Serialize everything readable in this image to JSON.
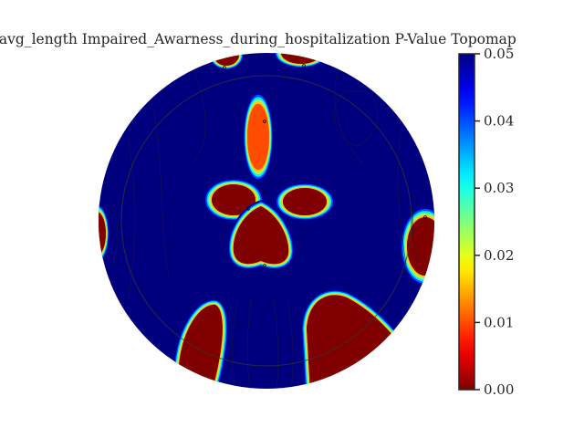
{
  "chart_data": {
    "type": "heatmap",
    "subtype": "scalp-topomap",
    "title": "e_avg_length Impaired_Awarness_during_hospitalization P-Value Topomap",
    "colormap": "jet_r",
    "colorbar": {
      "vmin": 0.0,
      "vmax": 0.05,
      "ticks": [
        0.0,
        0.01,
        0.02,
        0.03,
        0.04,
        0.05
      ],
      "tick_labels": [
        "0.00",
        "0.01",
        "0.02",
        "0.03",
        "0.04",
        "0.05"
      ],
      "placement": "right"
    },
    "background_value": 0.05,
    "significant_regions": [
      {
        "name": "frontal-midline",
        "min_p": 0.01
      },
      {
        "name": "central-left",
        "min_p": 0.0
      },
      {
        "name": "central-right",
        "min_p": 0.0
      },
      {
        "name": "central-midline",
        "min_p": 0.0
      },
      {
        "name": "left-temporal",
        "min_p": 0.0
      },
      {
        "name": "right-temporal",
        "min_p": 0.0
      },
      {
        "name": "occipital-left",
        "min_p": 0.0
      },
      {
        "name": "occipital-right",
        "min_p": 0.0
      },
      {
        "name": "top-left-edge",
        "min_p": 0.0
      },
      {
        "name": "top-right-edge",
        "min_p": 0.0
      }
    ]
  }
}
